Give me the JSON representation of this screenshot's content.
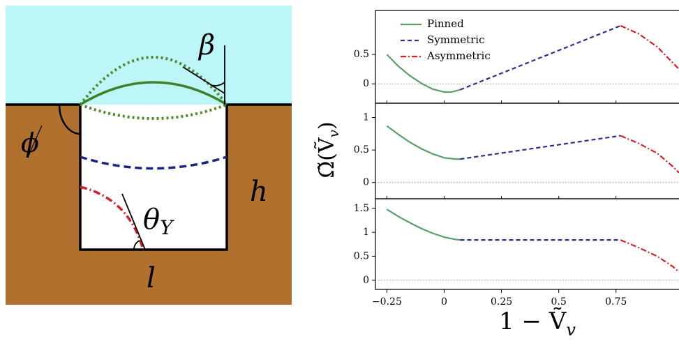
{
  "diagram": {
    "beta": "β",
    "phi": "ϕ",
    "h": "h",
    "theta": "θ",
    "theta_sub": "Y",
    "l": "l"
  },
  "chart_data": [
    {
      "type": "line",
      "legend": "upper left",
      "xlim": [
        -0.3,
        1.025
      ],
      "ylim": [
        -0.33,
        1.25
      ],
      "yticks": [
        0,
        0.5
      ],
      "zero_line": true,
      "series": [
        {
          "name": "Pinned",
          "color": "#5a9e6a",
          "style": "solid",
          "x": [
            -0.25,
            -0.2,
            -0.15,
            -0.1,
            -0.05,
            0,
            0.03,
            0.07
          ],
          "values": [
            0.5,
            0.3,
            0.14,
            0.01,
            -0.09,
            -0.14,
            -0.14,
            -0.1
          ]
        },
        {
          "name": "Symmetric",
          "color": "#2b2f8f",
          "style": "dashed",
          "x": [
            0.07,
            0.77
          ],
          "values": [
            -0.1,
            0.99
          ]
        },
        {
          "name": "Asymmetric",
          "color": "#d0202a",
          "style": "dashdot",
          "x": [
            0.77,
            0.85,
            0.93,
            1.0,
            1.025
          ],
          "values": [
            0.99,
            0.85,
            0.63,
            0.35,
            0.25
          ]
        }
      ]
    },
    {
      "type": "line",
      "xlim": [
        -0.3,
        1.025
      ],
      "ylim": [
        -0.25,
        1.22
      ],
      "yticks": [
        0,
        0.5,
        1
      ],
      "zero_line": true,
      "ylabel": {
        "main": "Ω̃(Ṽ",
        "sub": "v",
        "close": ")"
      },
      "series": [
        {
          "color": "#5a9e6a",
          "style": "solid",
          "x": [
            -0.25,
            -0.2,
            -0.15,
            -0.1,
            -0.05,
            0,
            0.05,
            0.07
          ],
          "values": [
            0.87,
            0.74,
            0.62,
            0.52,
            0.44,
            0.38,
            0.36,
            0.36
          ]
        },
        {
          "color": "#2b2f8f",
          "style": "dashed",
          "x": [
            0.07,
            0.77
          ],
          "values": [
            0.36,
            0.72
          ]
        },
        {
          "color": "#d0202a",
          "style": "dashdot",
          "x": [
            0.77,
            0.85,
            0.93,
            1.0,
            1.025
          ],
          "values": [
            0.72,
            0.6,
            0.45,
            0.24,
            0.15
          ]
        }
      ]
    },
    {
      "type": "line",
      "xlim": [
        -0.3,
        1.025
      ],
      "ylim": [
        -0.19,
        1.7
      ],
      "yticks": [
        0,
        0.5,
        1,
        1.5
      ],
      "zero_line": true,
      "xticks": [
        {
          "value": -0.25,
          "label": "−0.25"
        },
        0,
        0.25,
        0.5,
        0.75
      ],
      "xlabel": {
        "main": "1 − Ṽ",
        "sub": "v"
      },
      "series": [
        {
          "color": "#5a9e6a",
          "style": "solid",
          "x": [
            -0.25,
            -0.2,
            -0.15,
            -0.1,
            -0.05,
            0,
            0.05,
            0.07
          ],
          "values": [
            1.48,
            1.33,
            1.2,
            1.08,
            0.98,
            0.9,
            0.85,
            0.84
          ]
        },
        {
          "color": "#2b2f8f",
          "style": "dashed",
          "x": [
            0.07,
            0.77
          ],
          "values": [
            0.84,
            0.84
          ]
        },
        {
          "color": "#d0202a",
          "style": "dashdot",
          "x": [
            0.77,
            0.85,
            0.93,
            1.0,
            1.025
          ],
          "values": [
            0.84,
            0.68,
            0.5,
            0.28,
            0.17
          ]
        }
      ]
    }
  ]
}
